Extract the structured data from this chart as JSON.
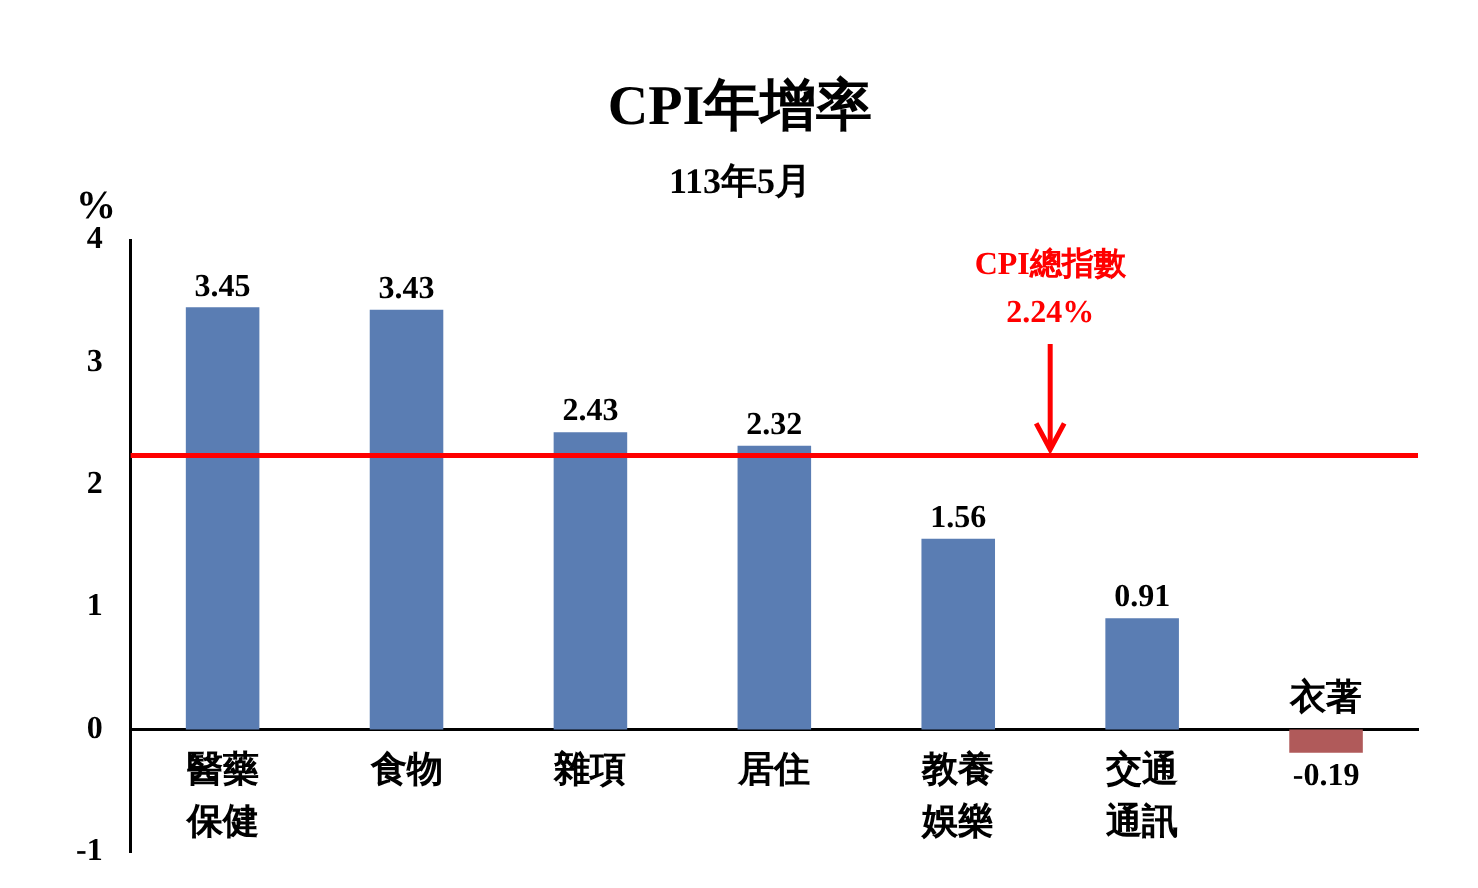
{
  "chart_data": {
    "type": "bar",
    "title": "CPI年增率",
    "subtitle": "113年5月",
    "ylabel": "%",
    "categories": [
      "醫藥保健",
      "食物",
      "雜項",
      "居住",
      "教養娛樂",
      "交通通訊",
      "衣著"
    ],
    "values": [
      3.45,
      3.43,
      2.43,
      2.32,
      1.56,
      0.91,
      -0.19
    ],
    "colors": [
      "#5a7db3",
      "#5a7db3",
      "#5a7db3",
      "#5a7db3",
      "#5a7db3",
      "#5a7db3",
      "#b05a5a"
    ],
    "ylim": [
      -1,
      4
    ],
    "yticks": [
      -1,
      0,
      1,
      2,
      3,
      4
    ],
    "grid": false,
    "legend": false,
    "data_labels": true,
    "ref_lines": [
      {
        "axis": "y",
        "value": 2.24,
        "label": "CPI總指數 2.24%",
        "color": "#ff0000"
      }
    ]
  }
}
